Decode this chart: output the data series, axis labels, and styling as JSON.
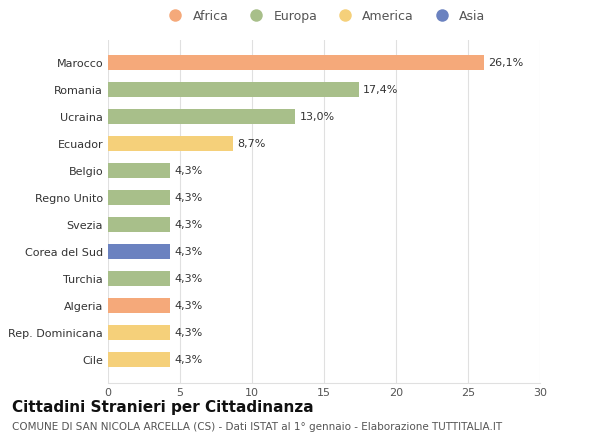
{
  "categories": [
    "Marocco",
    "Romania",
    "Ucraina",
    "Ecuador",
    "Belgio",
    "Regno Unito",
    "Svezia",
    "Corea del Sud",
    "Turchia",
    "Algeria",
    "Rep. Dominicana",
    "Cile"
  ],
  "values": [
    26.1,
    17.4,
    13.0,
    8.7,
    4.3,
    4.3,
    4.3,
    4.3,
    4.3,
    4.3,
    4.3,
    4.3
  ],
  "colors": [
    "#F5A97A",
    "#A8BF8A",
    "#A8BF8A",
    "#F5D07A",
    "#A8BF8A",
    "#A8BF8A",
    "#A8BF8A",
    "#6B82C0",
    "#A8BF8A",
    "#F5A97A",
    "#F5D07A",
    "#F5D07A"
  ],
  "labels": [
    "26,1%",
    "17,4%",
    "13,0%",
    "8,7%",
    "4,3%",
    "4,3%",
    "4,3%",
    "4,3%",
    "4,3%",
    "4,3%",
    "4,3%",
    "4,3%"
  ],
  "legend_labels": [
    "Africa",
    "Europa",
    "America",
    "Asia"
  ],
  "legend_colors": [
    "#F5A97A",
    "#A8BF8A",
    "#F5D07A",
    "#6B82C0"
  ],
  "title": "Cittadini Stranieri per Cittadinanza",
  "subtitle": "COMUNE DI SAN NICOLA ARCELLA (CS) - Dati ISTAT al 1° gennaio - Elaborazione TUTTITALIA.IT",
  "xlim": [
    0,
    30
  ],
  "xticks": [
    0,
    5,
    10,
    15,
    20,
    25,
    30
  ],
  "background_color": "#ffffff",
  "grid_color": "#e0e0e0",
  "title_fontsize": 11,
  "subtitle_fontsize": 7.5,
  "label_fontsize": 8,
  "tick_fontsize": 8,
  "legend_fontsize": 9,
  "bar_height": 0.55
}
